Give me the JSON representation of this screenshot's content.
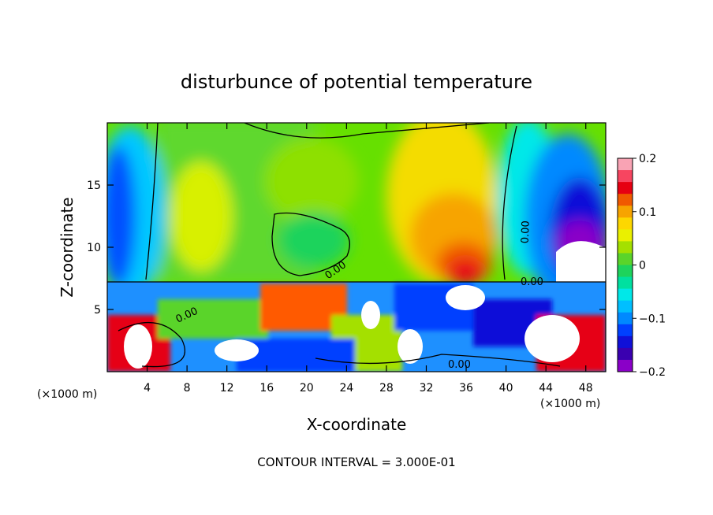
{
  "chart_data": {
    "type": "heatmap",
    "title": "disturbunce of potential temperature",
    "xlabel": "X-coordinate",
    "ylabel": "Z-coordinate",
    "x_unit": "(×1000 m)",
    "y_unit": "(×1000 m)",
    "xlim": [
      0,
      50
    ],
    "ylim": [
      0,
      20
    ],
    "x_ticks": [
      4,
      8,
      12,
      16,
      20,
      24,
      28,
      32,
      36,
      40,
      44,
      48
    ],
    "y_ticks": [
      5,
      10,
      15
    ],
    "colorbar": {
      "range": [
        -0.2,
        0.2
      ],
      "tick_values": [
        0.2,
        0.1,
        0,
        -0.1,
        -0.2
      ],
      "tick_labels": [
        "0.2",
        "0.1",
        "0",
        "−0.1",
        "−0.2"
      ],
      "colors": [
        "#f9a3b4",
        "#f74560",
        "#e60012",
        "#f05a00",
        "#f7a400",
        "#fdd700",
        "#eaf000",
        "#a4e000",
        "#5ad42a",
        "#1ed35c",
        "#00e0a0",
        "#00e8e8",
        "#00bfff",
        "#0089ff",
        "#0040ff",
        "#1010d8",
        "#3a00b0",
        "#8a00c8"
      ]
    },
    "contour_labels": [
      "0.00",
      "0.00",
      "0.00",
      "0.00",
      "0.00"
    ],
    "footer": "CONTOUR INTERVAL = 3.000E-01"
  }
}
